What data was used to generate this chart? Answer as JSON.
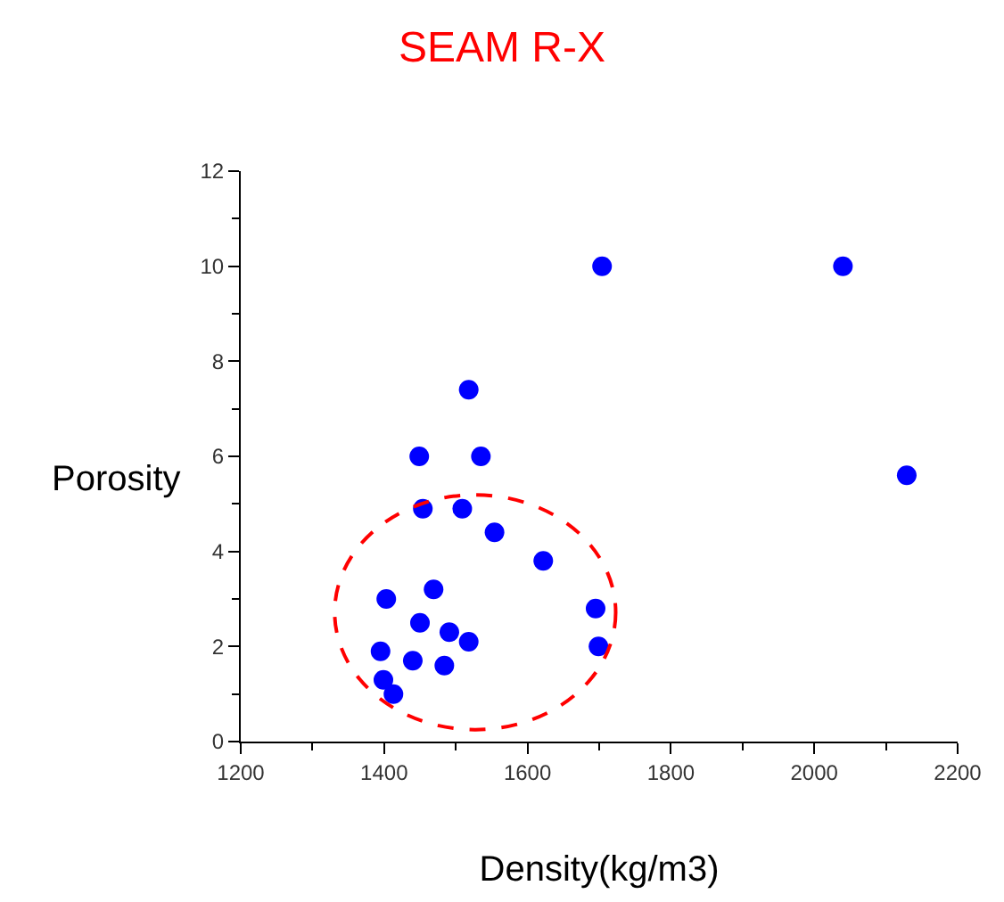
{
  "chart_data": {
    "type": "scatter",
    "title": "SEAM R-X",
    "xlabel": "Density(kg/m3)",
    "ylabel": "Porosity",
    "xlim": [
      1200,
      2200
    ],
    "xticks": [
      1200,
      1400,
      1600,
      1800,
      2000,
      2200
    ],
    "ylim": [
      0,
      12
    ],
    "yticks": [
      0,
      2,
      4,
      6,
      8,
      10,
      12
    ],
    "marker": "circle",
    "series": [
      {
        "color": "#0000ff",
        "x": [
          1704,
          2040,
          2129,
          1518,
          1449,
          1535,
          1454,
          1509,
          1554,
          1622,
          1469,
          1403,
          1695,
          1450,
          1491,
          1518,
          1699,
          1395,
          1440,
          1484,
          1399,
          1413
        ],
        "values": [
          10.0,
          10.0,
          5.6,
          7.4,
          6.0,
          6.0,
          4.9,
          4.9,
          4.4,
          3.8,
          3.2,
          3.0,
          2.8,
          2.5,
          2.3,
          2.1,
          2.0,
          1.9,
          1.7,
          1.6,
          1.3,
          1.0
        ]
      }
    ]
  }
}
